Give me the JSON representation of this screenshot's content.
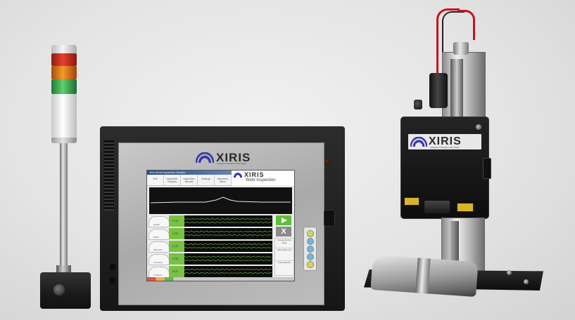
{
  "brand": {
    "controller_logo": "XIRIS",
    "controller_logo_sub": "Inspection Solutions with Vision",
    "sensor_logo": "XIRIS",
    "sensor_logo_sub": "Inspection Solutions with Vision"
  },
  "screen": {
    "title_bar": "Xiris Weld Inspection Monitor",
    "logo": "XIRIS",
    "subtitle": "Weld Inspection",
    "menu": [
      "Exit",
      "Inspection Recipes",
      "Inspection Results",
      "Settings",
      "Advanced Menu"
    ],
    "rows": [
      {
        "gauge": "Height",
        "value": "0.25"
      },
      {
        "gauge": "Width",
        "value": "0.18"
      },
      {
        "gauge": "Mismatch",
        "value": "0.03"
      },
      {
        "gauge": "Concavity",
        "value": "0.05"
      },
      {
        "gauge": "Undercut",
        "value": "0.02"
      }
    ],
    "side_buttons": [
      "Change Recipe Page",
      "Save Data Live",
      "Clear Results"
    ],
    "stop_symbol": "X"
  },
  "colors": {
    "accent_blue": "#3a3aa8",
    "trace_green": "#7ac142",
    "stack_red": "#e8402c",
    "stack_amber": "#f59a2a",
    "stack_green": "#5fd06e"
  },
  "icons": {
    "play": "play-icon",
    "stop": "x-icon"
  }
}
